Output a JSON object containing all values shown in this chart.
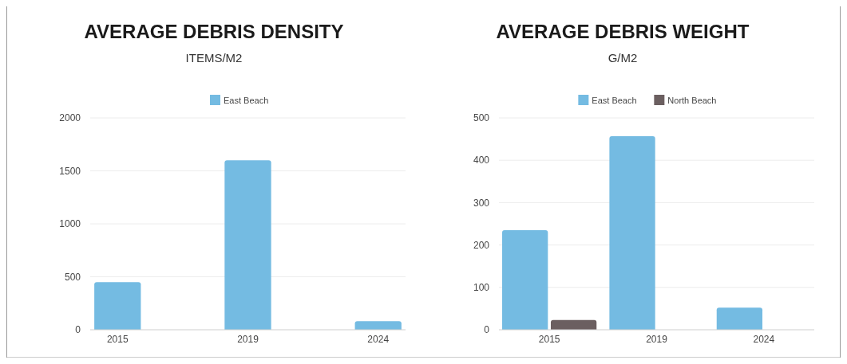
{
  "chart_data": [
    {
      "type": "bar",
      "title": "AVERAGE DEBRIS DENSITY",
      "subtitle": "ITEMS/M2",
      "categories": [
        "2015",
        "2019",
        "2024"
      ],
      "series": [
        {
          "name": "East Beach",
          "color": "#74bbe2",
          "values": [
            450,
            1600,
            80
          ]
        }
      ],
      "ylim": [
        0,
        2000
      ],
      "yticks": [
        0,
        500,
        1000,
        1500,
        2000
      ],
      "grid": "y",
      "legend": "top"
    },
    {
      "type": "bar",
      "title": "AVERAGE DEBRIS WEIGHT",
      "subtitle": "G/M2",
      "categories": [
        "2015",
        "2019",
        "2024"
      ],
      "series": [
        {
          "name": "East Beach",
          "color": "#74bbe2",
          "values": [
            235,
            457,
            52
          ]
        },
        {
          "name": "North Beach",
          "color": "#6b5f60",
          "values": [
            23,
            null,
            null
          ]
        }
      ],
      "ylim": [
        0,
        500
      ],
      "yticks": [
        0,
        100,
        200,
        300,
        400,
        500
      ],
      "grid": "y",
      "legend": "top"
    }
  ]
}
